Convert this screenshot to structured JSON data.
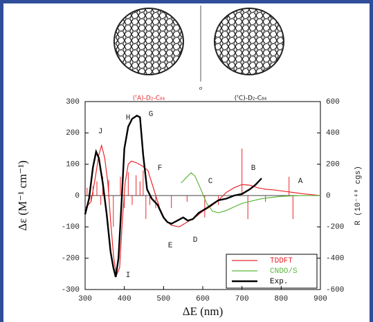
{
  "chart_data": {
    "type": "line",
    "subtitles": [
      "(ᶠA)-D₂-C₈₄",
      "(ᶠC)-D₂-C₈₄"
    ],
    "divider_label": "σ",
    "x_label": "ΔE (nm)",
    "y_label": "Δε (M⁻¹ cm⁻¹)",
    "y2_label": "R (10⁻⁴⁰ cgs)",
    "xlim": [
      300,
      900
    ],
    "xticks": [
      300,
      400,
      500,
      600,
      700,
      800,
      900
    ],
    "ylim": [
      -300,
      300
    ],
    "yticks": [
      -300,
      -200,
      -100,
      0,
      100,
      200,
      300
    ],
    "y2lim": [
      -600,
      600
    ],
    "y2ticks": [
      -600,
      -400,
      -200,
      0,
      200,
      400,
      600
    ],
    "annotations": [
      "J",
      "H",
      "G",
      "I",
      "F",
      "E",
      "D",
      "C",
      "B",
      "A"
    ],
    "series": [
      {
        "name": "TDDFT",
        "color": "#e8262a",
        "x": [
          300,
          315,
          325,
          335,
          342,
          350,
          358,
          365,
          373,
          380,
          388,
          395,
          402,
          410,
          418,
          430,
          445,
          460,
          475,
          490,
          505,
          520,
          540,
          560,
          580,
          600,
          620,
          640,
          660,
          680,
          700,
          720,
          740,
          760,
          780,
          800,
          830,
          860,
          900
        ],
        "values": [
          -40,
          -20,
          50,
          130,
          160,
          120,
          40,
          -80,
          -200,
          -255,
          -230,
          -80,
          40,
          100,
          110,
          105,
          95,
          80,
          20,
          -40,
          -80,
          -95,
          -100,
          -85,
          -70,
          -50,
          -35,
          -15,
          10,
          25,
          35,
          33,
          25,
          20,
          18,
          15,
          10,
          5,
          0
        ]
      },
      {
        "name": "CNDO/S",
        "color": "#5cb83c",
        "axis": "y2",
        "x": [
          545,
          560,
          570,
          580,
          595,
          610,
          625,
          640,
          660,
          700,
          750,
          800,
          850,
          900
        ],
        "values": [
          80,
          120,
          145,
          125,
          40,
          -50,
          -100,
          -110,
          -95,
          -50,
          -20,
          -5,
          0,
          0
        ]
      },
      {
        "name": "Exp.",
        "color": "#000000",
        "x": [
          300,
          310,
          320,
          328,
          335,
          345,
          355,
          365,
          372,
          378,
          385,
          393,
          400,
          410,
          420,
          432,
          440,
          448,
          458,
          470,
          485,
          500,
          510,
          520,
          535,
          550,
          562,
          575,
          590,
          610,
          640,
          660,
          680,
          700,
          720,
          735,
          750
        ],
        "values": [
          -60,
          -10,
          90,
          140,
          120,
          40,
          -60,
          -180,
          -230,
          -260,
          -200,
          -20,
          150,
          220,
          245,
          255,
          250,
          130,
          20,
          -10,
          -30,
          -70,
          -85,
          -90,
          -80,
          -70,
          -80,
          -75,
          -55,
          -40,
          -15,
          -10,
          0,
          5,
          20,
          35,
          55
        ]
      }
    ],
    "sticks": {
      "color": "#e8262a",
      "axis": "y2",
      "x": [
        305,
        315,
        320,
        330,
        340,
        345,
        360,
        372,
        390,
        400,
        410,
        420,
        430,
        440,
        448,
        455,
        465,
        480,
        520,
        560,
        605,
        640,
        700,
        715,
        760,
        820,
        830
      ],
      "values": [
        50,
        -40,
        60,
        90,
        -60,
        120,
        100,
        -200,
        120,
        -80,
        150,
        -60,
        130,
        90,
        160,
        -150,
        -60,
        -80,
        -80,
        -40,
        -140,
        -60,
        300,
        -150,
        -40,
        120,
        -150
      ]
    }
  }
}
